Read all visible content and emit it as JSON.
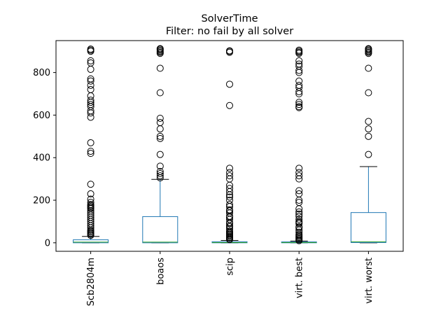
{
  "chart_data": {
    "type": "boxplot",
    "title": "SolverTime",
    "subtitle": "Filter: no fail by all solver",
    "xlabel": "",
    "ylabel": "",
    "ylim": [
      -40,
      950
    ],
    "yticks": [
      0,
      200,
      400,
      600,
      800
    ],
    "ytick_labels": [
      "0",
      "200",
      "400",
      "600",
      "800"
    ],
    "grid": false,
    "colors": {
      "box": "#1f77b4",
      "median": "#2ca02c",
      "whisker": "#000000",
      "flier": "#000000"
    },
    "series": [
      {
        "name": "Scb2804m",
        "q1": 0,
        "median": 3,
        "q3": 14,
        "whislo": 0,
        "whishi": 30,
        "fliers": [
          35,
          40,
          45,
          50,
          55,
          60,
          70,
          80,
          90,
          100,
          110,
          120,
          130,
          140,
          150,
          160,
          165,
          170,
          175,
          180,
          190,
          205,
          230,
          275,
          420,
          430,
          470,
          590,
          610,
          620,
          640,
          650,
          660,
          670,
          690,
          720,
          740,
          760,
          770,
          815,
          845,
          855,
          900,
          905,
          910
        ]
      },
      {
        "name": "boaos",
        "q1": 0,
        "median": 3,
        "q3": 123,
        "whislo": 0,
        "whishi": 298,
        "fliers": [
          305,
          315,
          325,
          335,
          360,
          415,
          490,
          500,
          535,
          565,
          585,
          705,
          820,
          890,
          895,
          900,
          905,
          910,
          912
        ]
      },
      {
        "name": "scip",
        "q1": 0,
        "median": 1,
        "q3": 5,
        "whislo": 0,
        "whishi": 11,
        "fliers": [
          15,
          20,
          25,
          30,
          35,
          40,
          45,
          50,
          55,
          65,
          75,
          80,
          90,
          95,
          110,
          120,
          125,
          140,
          150,
          155,
          170,
          180,
          200,
          215,
          225,
          240,
          255,
          270,
          300,
          315,
          330,
          350,
          645,
          745,
          895,
          900,
          902
        ]
      },
      {
        "name": "virt. best",
        "q1": 0,
        "median": 1,
        "q3": 4,
        "whislo": 0,
        "whishi": 8,
        "fliers": [
          10,
          15,
          20,
          25,
          30,
          35,
          40,
          50,
          60,
          70,
          75,
          90,
          95,
          100,
          110,
          125,
          135,
          145,
          160,
          190,
          200,
          230,
          245,
          300,
          315,
          330,
          350,
          635,
          640,
          650,
          660,
          700,
          710,
          730,
          740,
          760,
          800,
          810,
          830,
          840,
          855,
          890,
          895,
          900,
          905
        ]
      },
      {
        "name": "virt. worst",
        "q1": 1,
        "median": 5,
        "q3": 142,
        "whislo": 0,
        "whishi": 358,
        "fliers": [
          415,
          500,
          535,
          570,
          705,
          820,
          890,
          895,
          900,
          905,
          910,
          912
        ]
      }
    ]
  }
}
